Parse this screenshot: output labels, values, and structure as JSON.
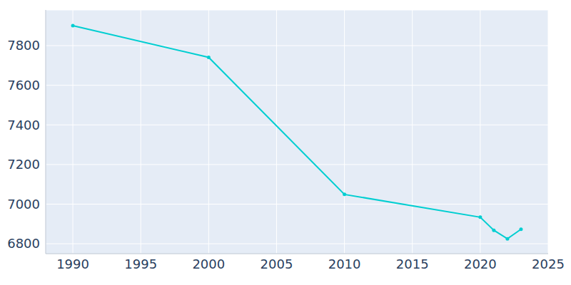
{
  "chart_data": {
    "type": "line",
    "x": [
      1990,
      2000,
      2010,
      2020,
      2021,
      2022,
      2023
    ],
    "values": [
      7901,
      7741,
      7049,
      6934,
      6868,
      6825,
      6873
    ],
    "color": "#00ced1",
    "marker": "circle",
    "xlim": [
      1988,
      2025
    ],
    "xticks": [
      1990,
      1995,
      2000,
      2005,
      2010,
      2015,
      2020,
      2025
    ],
    "ylim": [
      6750,
      7980
    ],
    "yticks": [
      6800,
      7000,
      7200,
      7400,
      7600,
      7800
    ],
    "grid": true
  }
}
